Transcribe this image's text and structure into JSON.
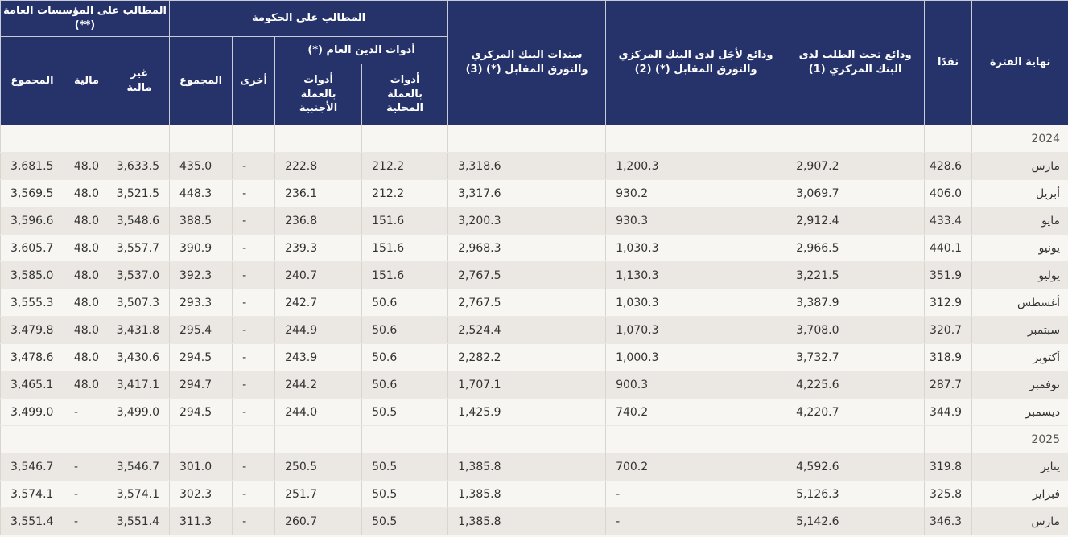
{
  "headers": {
    "period": "نهاية الفترة",
    "cash": "نقدًا",
    "demand_deposits": "ودائع تحت الطلب لدى البنك المركزي (1)",
    "term_deposits": "ودائع لأجَل لدى البنك المركزي والتوَرق المقابل (*) (2)",
    "cb_bonds": "سندات البنك المركزي والتوَرق المقابل (*) (3)",
    "gov_claims": "المطالب على الحكومة",
    "debt_instruments": "أدوات الدين العام (*)",
    "local_currency": "أدوات\nبالعملة\nالمحلية",
    "foreign_currency": "أدوات\nبالعملة\nالأجنبية",
    "other": "أخرى",
    "gov_total": "المجموع",
    "public_inst": "المطالب على المؤسسات العامة (**)",
    "non_financial": "غير\nمالية",
    "financial": "مالية",
    "inst_total": "المجموع"
  },
  "sections": [
    {
      "year": "2024",
      "rows": [
        {
          "period": "مارس",
          "cells": [
            "428.6",
            "2,907.2",
            "1,200.3",
            "3,318.6",
            "212.2",
            "222.8",
            "-",
            "435.0",
            "3,633.5",
            "48.0",
            "3,681.5"
          ]
        },
        {
          "period": "أبريل",
          "cells": [
            "406.0",
            "3,069.7",
            "930.2",
            "3,317.6",
            "212.2",
            "236.1",
            "-",
            "448.3",
            "3,521.5",
            "48.0",
            "3,569.5"
          ]
        },
        {
          "period": "مايو",
          "cells": [
            "433.4",
            "2,912.4",
            "930.3",
            "3,200.3",
            "151.6",
            "236.8",
            "-",
            "388.5",
            "3,548.6",
            "48.0",
            "3,596.6"
          ]
        },
        {
          "period": "يونيو",
          "cells": [
            "440.1",
            "2,966.5",
            "1,030.3",
            "2,968.3",
            "151.6",
            "239.3",
            "-",
            "390.9",
            "3,557.7",
            "48.0",
            "3,605.7"
          ]
        },
        {
          "period": "يوليو",
          "cells": [
            "351.9",
            "3,221.5",
            "1,130.3",
            "2,767.5",
            "151.6",
            "240.7",
            "-",
            "392.3",
            "3,537.0",
            "48.0",
            "3,585.0"
          ]
        },
        {
          "period": "أغسطس",
          "cells": [
            "312.9",
            "3,387.9",
            "1,030.3",
            "2,767.5",
            "50.6",
            "242.7",
            "-",
            "293.3",
            "3,507.3",
            "48.0",
            "3,555.3"
          ]
        },
        {
          "period": "سبتمبر",
          "cells": [
            "320.7",
            "3,708.0",
            "1,070.3",
            "2,524.4",
            "50.6",
            "244.9",
            "-",
            "295.4",
            "3,431.8",
            "48.0",
            "3,479.8"
          ]
        },
        {
          "period": "أكتوبر",
          "cells": [
            "318.9",
            "3,732.7",
            "1,000.3",
            "2,282.2",
            "50.6",
            "243.9",
            "-",
            "294.5",
            "3,430.6",
            "48.0",
            "3,478.6"
          ]
        },
        {
          "period": "نوفمبر",
          "cells": [
            "287.7",
            "4,225.6",
            "900.3",
            "1,707.1",
            "50.6",
            "244.2",
            "-",
            "294.7",
            "3,417.1",
            "48.0",
            "3,465.1"
          ]
        },
        {
          "period": "ديسمبر",
          "cells": [
            "344.9",
            "4,220.7",
            "740.2",
            "1,425.9",
            "50.5",
            "244.0",
            "-",
            "294.5",
            "3,499.0",
            "-",
            "3,499.0"
          ]
        }
      ]
    },
    {
      "year": "2025",
      "rows": [
        {
          "period": "يناير",
          "cells": [
            "319.8",
            "4,592.6",
            "700.2",
            "1,385.8",
            "50.5",
            "250.5",
            "-",
            "301.0",
            "3,546.7",
            "-",
            "3,546.7"
          ]
        },
        {
          "period": "فبراير",
          "cells": [
            "325.8",
            "5,126.3",
            "-",
            "1,385.8",
            "50.5",
            "251.7",
            "-",
            "302.3",
            "3,574.1",
            "-",
            "3,574.1"
          ]
        },
        {
          "period": "مارس",
          "cells": [
            "346.3",
            "5,142.6",
            "-",
            "1,385.8",
            "50.5",
            "260.7",
            "-",
            "311.3",
            "3,551.4",
            "-",
            "3,551.4"
          ]
        }
      ]
    }
  ]
}
